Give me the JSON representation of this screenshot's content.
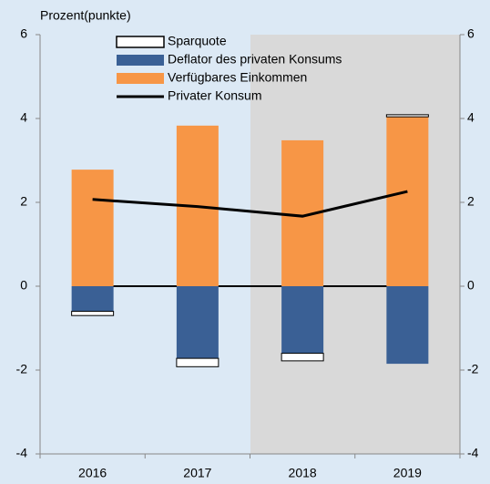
{
  "chart_data": {
    "type": "bar",
    "y_label": "Prozent(punkte)",
    "categories": [
      "2016",
      "2017",
      "2018",
      "2019"
    ],
    "series": [
      {
        "name": "Sparquote",
        "color": "#ffffff",
        "values": [
          -0.1,
          -0.2,
          -0.18,
          0.05
        ]
      },
      {
        "name": "Deflator des privaten Konsums",
        "color": "#3a6095",
        "values": [
          -0.6,
          -1.72,
          -1.6,
          -1.85
        ]
      },
      {
        "name": "Verfügbares Einkommen",
        "color": "#f79646",
        "values": [
          2.78,
          3.83,
          3.48,
          4.04
        ]
      },
      {
        "name": "Privater Konsum",
        "color": "#000000",
        "type": "line",
        "values": [
          2.07,
          1.9,
          1.67,
          2.26
        ]
      }
    ],
    "ylim": [
      -4,
      6
    ],
    "yticks": [
      -4,
      -2,
      0,
      2,
      4,
      6
    ],
    "y2lim": [
      -4,
      6
    ],
    "y2ticks": [
      -4,
      -2,
      0,
      2,
      4,
      6
    ]
  }
}
